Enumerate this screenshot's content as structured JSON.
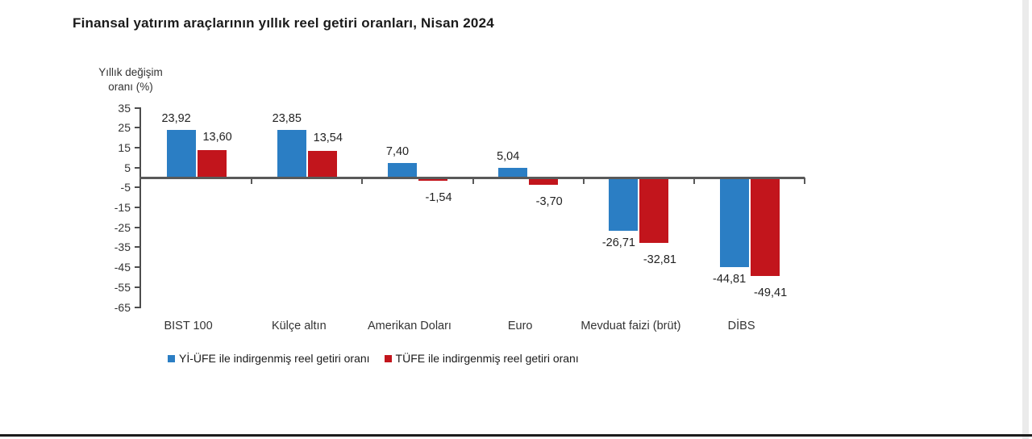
{
  "page": {
    "background": "#ffffff"
  },
  "chart_data": {
    "type": "bar",
    "title": "Finansal yatırım araçlarının yıllık reel getiri oranları, Nisan 2024",
    "ylabel": {
      "line1": "Yıllık değişim",
      "line2": "oranı (%)"
    },
    "categories": [
      "BIST 100",
      "Külçe altın",
      "Amerikan Doları",
      "Euro",
      "Mevduat faizi (brüt)",
      "DİBS"
    ],
    "series": [
      {
        "name": "Yİ-ÜFE ile indirgenmiş reel getiri oranı",
        "color": "#2b7ec4",
        "values": [
          23.92,
          23.85,
          7.4,
          5.04,
          -26.71,
          -44.81
        ],
        "value_labels": [
          "23,92",
          "23,85",
          "7,40",
          "5,04",
          "-26,71",
          "-44,81"
        ]
      },
      {
        "name": "TÜFE ile indirgenmiş reel getiri oranı",
        "color": "#c2151c",
        "values": [
          13.6,
          13.54,
          -1.54,
          -3.7,
          -32.81,
          -49.41
        ],
        "value_labels": [
          "13,60",
          "13,54",
          "-1,54",
          "-3,70",
          "-32,81",
          "-49,41"
        ]
      }
    ],
    "y_ticks": [
      35,
      25,
      15,
      5,
      -5,
      -15,
      -25,
      -35,
      -45,
      -55,
      -65
    ],
    "y_tick_labels": [
      "35",
      "25",
      "15",
      "5",
      "-5",
      "-15",
      "-25",
      "-35",
      "-45",
      "-55",
      "-65"
    ],
    "ylim": [
      -65,
      35
    ],
    "grid": false,
    "legend_position": "bottom"
  },
  "colors": {
    "axis": "#4d4d4d",
    "zero_line": "#595959",
    "text": "#333333",
    "series_blue": "#2b7ec4",
    "series_red": "#c2151c"
  }
}
